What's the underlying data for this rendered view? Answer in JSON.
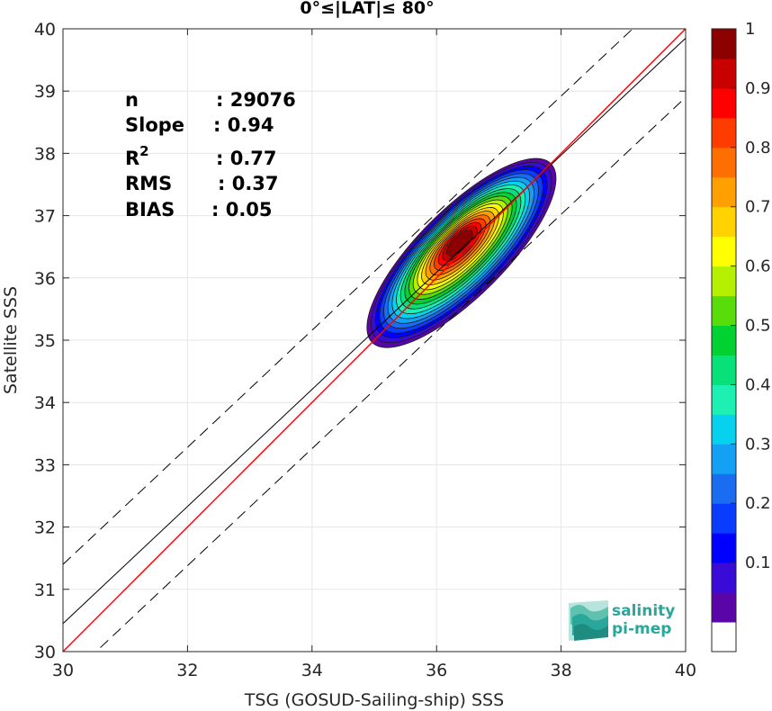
{
  "chart_data": {
    "type": "heatmap",
    "title": "0°≤|LAT|≤ 80°",
    "xlabel": "TSG (GOSUD-Sailing-ship) SSS",
    "ylabel": "Satellite SSS",
    "xlim": [
      30,
      40
    ],
    "ylim": [
      30,
      40
    ],
    "xticks": [
      "30",
      "32",
      "34",
      "36",
      "38",
      "40"
    ],
    "yticks": [
      "30",
      "31",
      "32",
      "33",
      "34",
      "35",
      "36",
      "37",
      "38",
      "39",
      "40"
    ],
    "grid": true,
    "stats": {
      "n_label": "n",
      "n_value": ": 29076",
      "slope_label": "Slope",
      "slope_value": ": 0.94",
      "r2_label": "R",
      "r2_sup": "2",
      "r2_value": ": 0.77",
      "rms_label": "RMS",
      "rms_value": ": 0.37",
      "bias_label": "BIAS",
      "bias_value": ": 0.05"
    },
    "lines": {
      "identity": {
        "slope": 1.0,
        "intercept": 0.0,
        "color": "#ff0000"
      },
      "fit": {
        "slope": 0.94,
        "intercept": 2.25,
        "color": "#000000"
      },
      "upper_band": {
        "slope": 0.94,
        "intercept": 3.2,
        "color": "#000000",
        "style": "dashed"
      },
      "lower_band": {
        "slope": 0.94,
        "intercept": 1.3,
        "color": "#000000",
        "style": "dashed"
      }
    },
    "density_center": [
      36.4,
      36.4
    ],
    "colorbar": {
      "ticks": [
        "0.1",
        "0.2",
        "0.3",
        "0.4",
        "0.5",
        "0.6",
        "0.7",
        "0.8",
        "0.9",
        "1"
      ],
      "levels": [
        0.05,
        0.1,
        0.15,
        0.2,
        0.25,
        0.3,
        0.35,
        0.4,
        0.45,
        0.5,
        0.55,
        0.6,
        0.65,
        0.7,
        0.75,
        0.8,
        0.85,
        0.9,
        0.95,
        1.0
      ],
      "colors": [
        "#ffffff",
        "#5a05a8",
        "#3a0ad6",
        "#0000ff",
        "#0a3cff",
        "#1a6cf0",
        "#14a0f5",
        "#06d2f0",
        "#1ef0b4",
        "#08e07a",
        "#00d232",
        "#58dc0a",
        "#b4f000",
        "#ffff00",
        "#ffd200",
        "#ffa000",
        "#ff6e00",
        "#ff3c00",
        "#ff0000",
        "#c80000",
        "#8c0000"
      ]
    },
    "logo": {
      "line1": "salinity",
      "line2": "pi-mep"
    }
  }
}
